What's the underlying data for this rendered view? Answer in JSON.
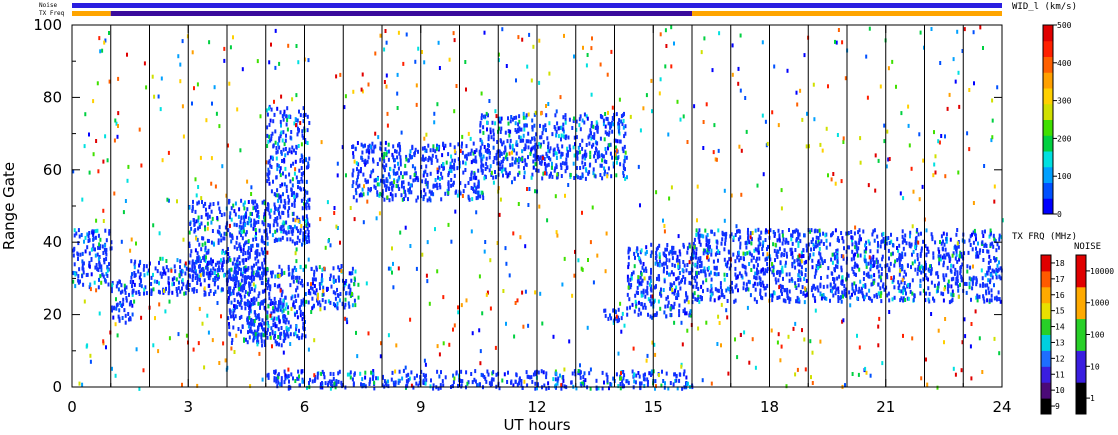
{
  "chart_data": {
    "type": "scatter",
    "xlabel": "UT hours",
    "ylabel": "Range Gate",
    "xlim": [
      0,
      24
    ],
    "ylim": [
      0,
      100
    ],
    "x_ticks": [
      "0",
      "3",
      "6",
      "9",
      "12",
      "15",
      "18",
      "21",
      "24"
    ],
    "y_ticks": [
      "0",
      "20",
      "40",
      "60",
      "80",
      "100"
    ],
    "scan_lines_ut": [
      1,
      2,
      3,
      4,
      5,
      6,
      7,
      8,
      9,
      10,
      11,
      12,
      13,
      14,
      15,
      16,
      17,
      18,
      19,
      20,
      21,
      22,
      23
    ],
    "top_bars": {
      "noise_label": "Noise",
      "freq_label": "TX Freq",
      "noise_color": "#2a1ee0",
      "freq_segments": [
        {
          "start": 0,
          "end": 1.0,
          "color": "#ffa500"
        },
        {
          "start": 1.0,
          "end": 16.0,
          "color": "#3a0b9c"
        },
        {
          "start": 16.0,
          "end": 24,
          "color": "#ffa500"
        }
      ]
    },
    "series_clusters": [
      {
        "name": "",
        "color": "#1030ff",
        "points": [
          {
            "x_range": [
              0.0,
              1.0
            ],
            "y_range": [
              28,
              44
            ]
          },
          {
            "x_range": [
              1.0,
              1.6
            ],
            "y_range": [
              18,
              30
            ]
          },
          {
            "x_range": [
              1.5,
              4.5
            ],
            "y_range": [
              26,
              36
            ]
          },
          {
            "x_range": [
              3.0,
              5.0
            ],
            "y_range": [
              30,
              52
            ]
          },
          {
            "x_range": [
              4.0,
              5.5
            ],
            "y_range": [
              12,
              24
            ]
          },
          {
            "x_range": [
              4.0,
              7.3
            ],
            "y_range": [
              22,
              34
            ]
          },
          {
            "x_range": [
              4.5,
              6.0
            ],
            "y_range": [
              14,
              22
            ]
          },
          {
            "x_range": [
              5.0,
              6.1
            ],
            "y_range": [
              40,
              78
            ]
          },
          {
            "x_range": [
              7.2,
              10.6
            ],
            "y_range": [
              52,
              68
            ]
          },
          {
            "x_range": [
              10.5,
              14.3
            ],
            "y_range": [
              58,
              76
            ]
          },
          {
            "x_range": [
              14.3,
              16.0
            ],
            "y_range": [
              20,
              40
            ]
          },
          {
            "x_range": [
              13.7,
              14.2
            ],
            "y_range": [
              18,
              22
            ]
          },
          {
            "x_range": [
              16.0,
              24.0
            ],
            "y_range": [
              24,
              44
            ]
          },
          {
            "x_range": [
              5.0,
              16.0
            ],
            "y_range": [
              0,
              5
            ]
          }
        ]
      }
    ],
    "colorbar_width": {
      "title": "WID_l (km/s)",
      "ticks": [
        "0",
        "100",
        "200",
        "300",
        "400",
        "500"
      ],
      "colors": [
        "#0000ff",
        "#0050ff",
        "#00a0ff",
        "#00e0e0",
        "#00d040",
        "#40e000",
        "#d0e000",
        "#ffd000",
        "#ffa000",
        "#ff6000",
        "#ff2000",
        "#e00000"
      ]
    },
    "colorbar_freq": {
      "title": "TX FRQ (MHz)",
      "ticks": [
        "9",
        "10",
        "11",
        "12",
        "13",
        "14",
        "15",
        "16",
        "17",
        "18"
      ],
      "colors": [
        "#000000",
        "#4b0a78",
        "#3a1ee0",
        "#1e6eff",
        "#00d0e0",
        "#28d028",
        "#e8e000",
        "#ffaa00",
        "#ff5a00",
        "#e00000"
      ]
    },
    "colorbar_noise": {
      "title": "NOISE",
      "ticks": [
        "1",
        "10",
        "100",
        "1000",
        "10000"
      ],
      "colors": [
        "#000000",
        "#3a1ee0",
        "#28d028",
        "#ffaa00",
        "#e00000"
      ]
    }
  }
}
